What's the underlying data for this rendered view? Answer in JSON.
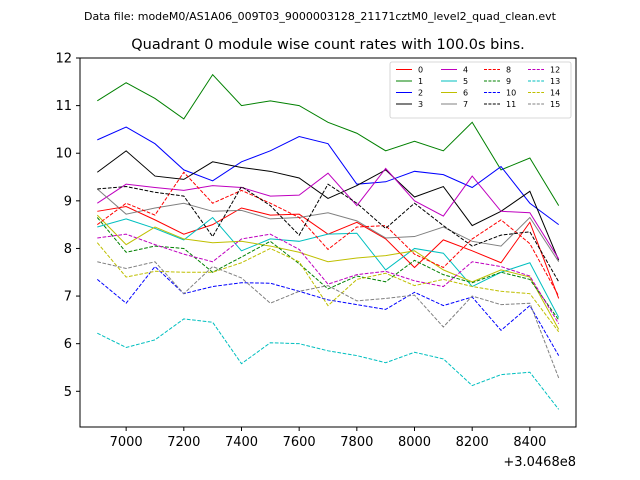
{
  "header": {
    "subtitle": "Data file: modeM0/AS1A06_009T03_9000003128_21171cztM0_level2_quad_clean.evt"
  },
  "chart_data": {
    "type": "line",
    "title": "Quadrant 0 module wise count rates with 100.0s bins.",
    "x_offset_label": "+3.0468e8",
    "x_ticks": [
      7000,
      7200,
      7400,
      7600,
      7800,
      8000,
      8200,
      8400
    ],
    "y_ticks": [
      5,
      6,
      7,
      8,
      9,
      10,
      11,
      12
    ],
    "xlim": [
      6840,
      8560
    ],
    "ylim": [
      4.25,
      12.0
    ],
    "x": [
      6900,
      7000,
      7100,
      7200,
      7300,
      7400,
      7500,
      7600,
      7700,
      7800,
      7900,
      8000,
      8100,
      8200,
      8300,
      8400,
      8500
    ],
    "legend_position": "upper-right",
    "series": [
      {
        "name": "0",
        "color": "#ff0000",
        "dash": "solid",
        "values": [
          8.78,
          8.88,
          8.6,
          8.3,
          8.5,
          8.85,
          8.7,
          8.72,
          8.3,
          8.55,
          8.2,
          7.6,
          8.18,
          7.95,
          7.7,
          8.55,
          6.95
        ]
      },
      {
        "name": "1",
        "color": "#008000",
        "dash": "solid",
        "values": [
          11.1,
          11.48,
          11.15,
          10.72,
          11.65,
          11.0,
          11.1,
          11.0,
          10.65,
          10.42,
          10.05,
          10.25,
          10.05,
          10.65,
          9.65,
          9.9,
          8.9
        ]
      },
      {
        "name": "2",
        "color": "#0000ff",
        "dash": "solid",
        "values": [
          10.28,
          10.55,
          10.2,
          9.65,
          9.42,
          9.82,
          10.05,
          10.35,
          10.2,
          9.35,
          9.4,
          9.62,
          9.55,
          9.28,
          9.72,
          8.95,
          8.5
        ]
      },
      {
        "name": "3",
        "color": "#000000",
        "dash": "solid",
        "values": [
          9.6,
          10.05,
          9.52,
          9.45,
          9.82,
          9.7,
          9.62,
          9.48,
          9.05,
          9.32,
          9.65,
          9.08,
          9.3,
          8.48,
          8.78,
          9.2,
          7.75
        ]
      },
      {
        "name": "4",
        "color": "#bf00bf",
        "dash": "solid",
        "values": [
          8.95,
          9.35,
          9.28,
          9.22,
          9.32,
          9.28,
          9.1,
          9.12,
          9.58,
          8.9,
          9.68,
          9.0,
          8.68,
          9.52,
          8.78,
          8.75,
          7.78
        ]
      },
      {
        "name": "5",
        "color": "#00bfbf",
        "dash": "solid",
        "values": [
          8.45,
          8.62,
          8.42,
          8.18,
          8.65,
          7.95,
          8.2,
          8.15,
          8.3,
          8.32,
          7.55,
          8.0,
          7.9,
          7.2,
          7.5,
          7.7,
          6.55
        ]
      },
      {
        "name": "6",
        "color": "#bfbf00",
        "dash": "solid",
        "values": [
          8.7,
          8.08,
          8.45,
          8.2,
          8.12,
          8.15,
          8.05,
          7.92,
          7.72,
          7.8,
          7.85,
          7.95,
          7.55,
          7.3,
          7.55,
          7.4,
          6.3
        ]
      },
      {
        "name": "7",
        "color": "#808080",
        "dash": "solid",
        "values": [
          9.25,
          8.72,
          8.85,
          8.95,
          8.78,
          8.8,
          8.62,
          8.65,
          8.75,
          8.58,
          8.22,
          8.25,
          8.45,
          8.15,
          8.05,
          8.65,
          7.72
        ]
      },
      {
        "name": "8",
        "color": "#ff0000",
        "dash": "dashed",
        "values": [
          8.5,
          8.95,
          8.7,
          9.6,
          8.95,
          9.22,
          8.95,
          8.65,
          7.98,
          8.45,
          8.48,
          7.88,
          7.6,
          8.2,
          8.6,
          8.1,
          7.0
        ]
      },
      {
        "name": "9",
        "color": "#008000",
        "dash": "dashed",
        "values": [
          8.65,
          7.92,
          8.05,
          8.0,
          7.5,
          7.82,
          8.15,
          7.68,
          7.15,
          7.42,
          7.3,
          7.75,
          7.45,
          7.28,
          7.5,
          7.35,
          6.5
        ]
      },
      {
        "name": "10",
        "color": "#0000ff",
        "dash": "dashed",
        "values": [
          7.35,
          6.85,
          7.62,
          7.05,
          7.2,
          7.28,
          7.27,
          7.1,
          6.92,
          6.82,
          6.72,
          7.08,
          6.8,
          6.98,
          6.28,
          6.8,
          5.75
        ]
      },
      {
        "name": "11",
        "color": "#000000",
        "dash": "dashed",
        "values": [
          9.25,
          9.3,
          9.18,
          9.1,
          8.25,
          9.3,
          8.9,
          8.28,
          9.35,
          8.95,
          8.42,
          8.95,
          8.48,
          8.05,
          8.28,
          8.35,
          7.3
        ]
      },
      {
        "name": "12",
        "color": "#bf00bf",
        "dash": "dashed",
        "values": [
          8.22,
          8.3,
          8.08,
          7.88,
          7.72,
          8.2,
          8.3,
          7.98,
          7.25,
          7.45,
          7.52,
          7.32,
          7.2,
          7.72,
          7.62,
          7.42,
          6.42
        ]
      },
      {
        "name": "13",
        "color": "#00bfbf",
        "dash": "dashed",
        "values": [
          6.22,
          5.92,
          6.08,
          6.52,
          6.45,
          5.58,
          6.02,
          6.0,
          5.85,
          5.75,
          5.6,
          5.82,
          5.68,
          5.12,
          5.35,
          5.4,
          4.62
        ]
      },
      {
        "name": "14",
        "color": "#bfbf00",
        "dash": "dashed",
        "values": [
          8.12,
          7.4,
          7.52,
          7.5,
          7.5,
          7.7,
          8.0,
          7.72,
          6.8,
          7.35,
          7.48,
          7.22,
          7.35,
          7.2,
          7.1,
          7.05,
          6.25
        ]
      },
      {
        "name": "15",
        "color": "#808080",
        "dash": "dashed",
        "values": [
          7.72,
          7.58,
          7.72,
          7.05,
          7.62,
          7.38,
          6.85,
          7.1,
          7.22,
          6.9,
          6.95,
          7.02,
          6.35,
          7.0,
          6.82,
          6.85,
          5.28
        ]
      }
    ]
  }
}
